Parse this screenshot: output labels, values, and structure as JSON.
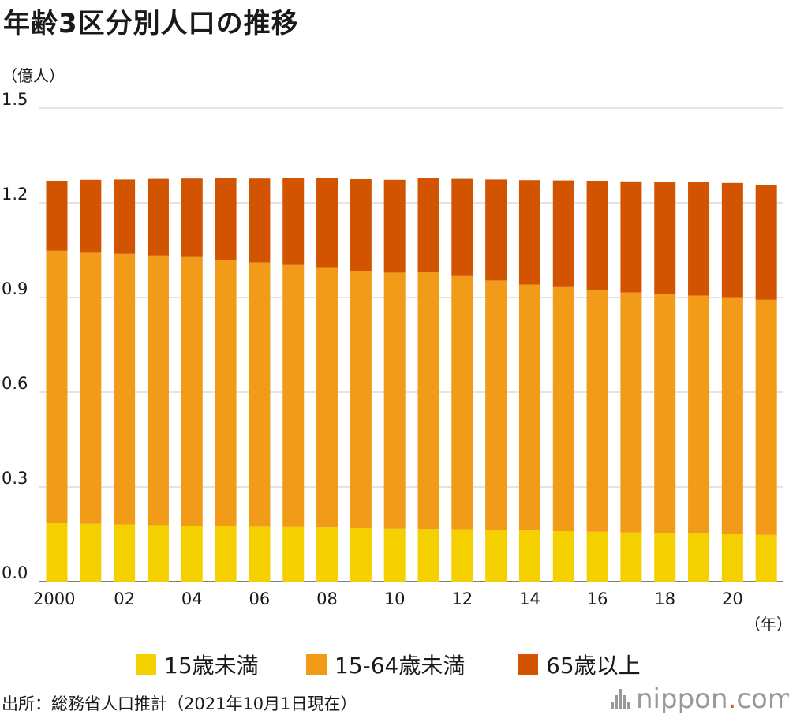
{
  "title": "年齢3区分別人口の推移",
  "y_unit_label": "（億人）",
  "x_unit_label": "（年）",
  "source": "出所：総務省人口推計（2021年10月1日現在）",
  "logo": {
    "name": "nippon",
    "dot": ".",
    "suffix": "com"
  },
  "legend": [
    {
      "label": "15歳未満",
      "color": "#f5d000"
    },
    {
      "label": "15-64歳未満",
      "color": "#f19b18"
    },
    {
      "label": "65歳以上",
      "color": "#d35400"
    }
  ],
  "chart_data": {
    "type": "bar",
    "stacked": true,
    "title": "年齢3区分別人口の推移",
    "ylabel": "（億人）",
    "xlabel": "（年）",
    "ylim": [
      0,
      1.5
    ],
    "yticks": [
      "0.0",
      "0.3",
      "0.6",
      "0.9",
      "1.2",
      "1.5"
    ],
    "grid": true,
    "legend_position": "bottom",
    "categories": [
      "2000",
      "2001",
      "2002",
      "2003",
      "2004",
      "2005",
      "2006",
      "2007",
      "2008",
      "2009",
      "2010",
      "2011",
      "2012",
      "2013",
      "2014",
      "2015",
      "2016",
      "2017",
      "2018",
      "2019",
      "2020",
      "2021"
    ],
    "xtick_labels": [
      "2000",
      "",
      "02",
      "",
      "04",
      "",
      "06",
      "",
      "08",
      "",
      "10",
      "",
      "12",
      "",
      "14",
      "",
      "16",
      "",
      "18",
      "",
      "20",
      ""
    ],
    "series": [
      {
        "name": "15歳未満",
        "color": "#f5d000",
        "values": [
          0.185,
          0.183,
          0.181,
          0.179,
          0.177,
          0.176,
          0.174,
          0.173,
          0.172,
          0.17,
          0.168,
          0.167,
          0.166,
          0.164,
          0.162,
          0.16,
          0.158,
          0.156,
          0.154,
          0.152,
          0.15,
          0.148
        ]
      },
      {
        "name": "15-64歳未満",
        "color": "#f19b18",
        "values": [
          0.863,
          0.861,
          0.857,
          0.854,
          0.851,
          0.844,
          0.837,
          0.83,
          0.824,
          0.815,
          0.811,
          0.813,
          0.802,
          0.79,
          0.779,
          0.773,
          0.766,
          0.76,
          0.757,
          0.754,
          0.751,
          0.745
        ]
      },
      {
        "name": "65歳以上",
        "color": "#d35400",
        "values": [
          0.222,
          0.229,
          0.236,
          0.243,
          0.249,
          0.258,
          0.266,
          0.275,
          0.282,
          0.29,
          0.294,
          0.298,
          0.308,
          0.32,
          0.331,
          0.338,
          0.346,
          0.352,
          0.355,
          0.359,
          0.362,
          0.364
        ]
      }
    ]
  }
}
